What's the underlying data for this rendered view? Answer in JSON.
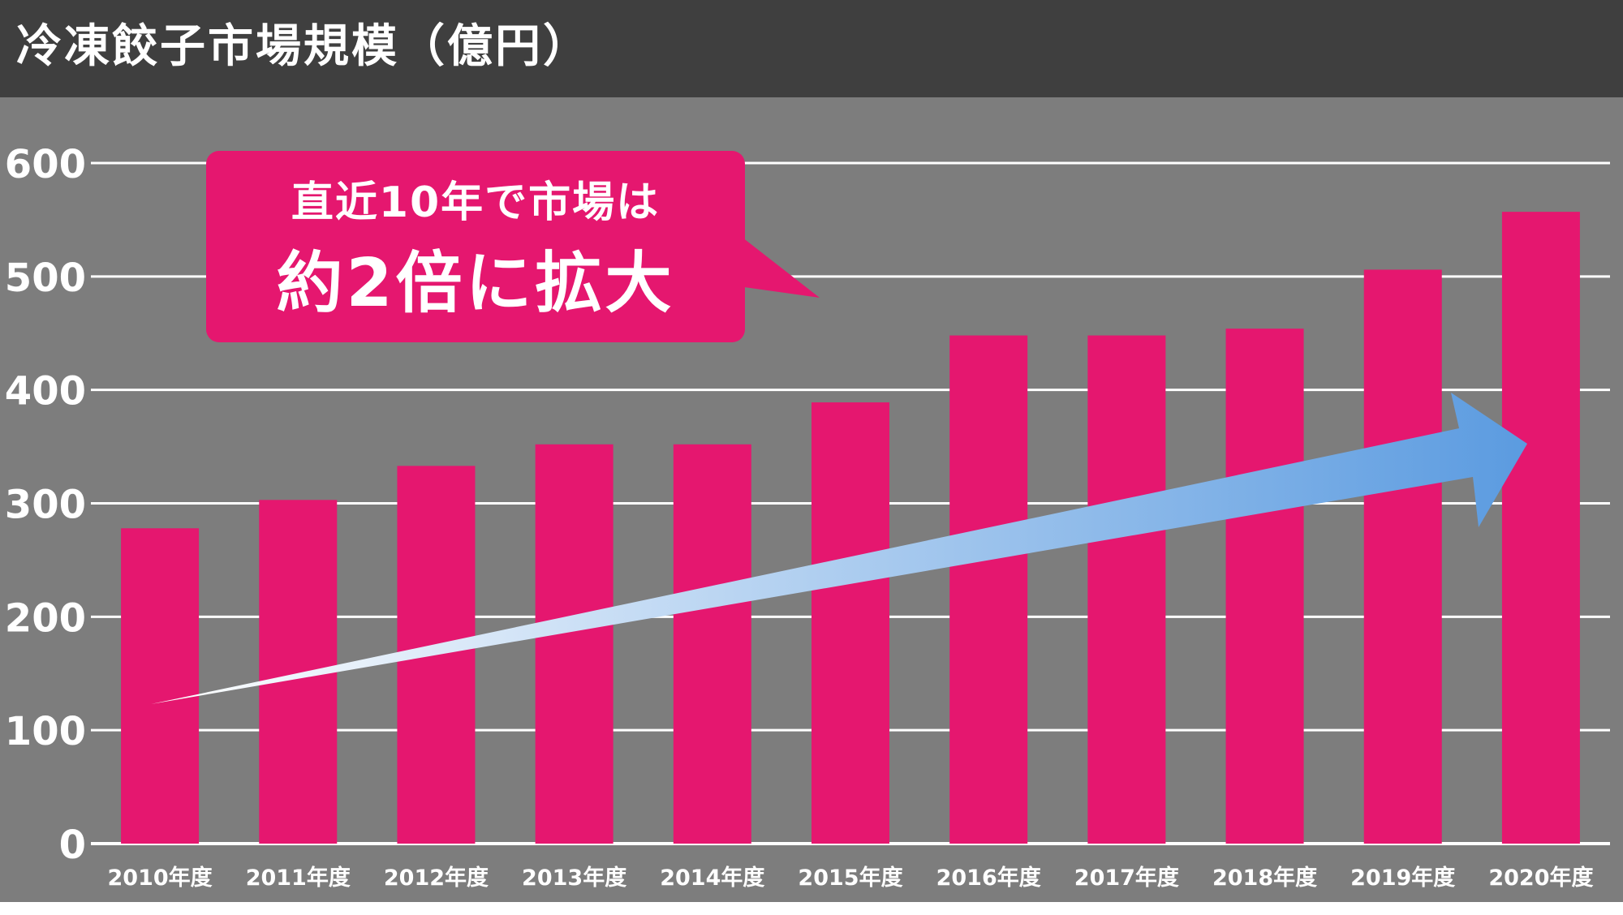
{
  "title": "冷凍餃子市場規模（億円）",
  "callout": {
    "line1": "直近10年で市場は",
    "line2": "約2倍に拡大"
  },
  "colors": {
    "bar": "#e5176f",
    "background": "#7d7d7d",
    "header": "#3f3f3f",
    "grid": "#ffffff",
    "arrow_start": "#ffffff",
    "arrow_end": "#5b9be0"
  },
  "chart_data": {
    "type": "bar",
    "title": "冷凍餃子市場規模（億円）",
    "categories": [
      "2010年度",
      "2011年度",
      "2012年度",
      "2013年度",
      "2014年度",
      "2015年度",
      "2016年度",
      "2017年度",
      "2018年度",
      "2019年度",
      "2020年度"
    ],
    "values": [
      278,
      303,
      333,
      352,
      352,
      389,
      448,
      448,
      454,
      506,
      557
    ],
    "y_ticks": [
      "0",
      "100",
      "200",
      "300",
      "400",
      "500",
      "600"
    ],
    "ylim": [
      0,
      600
    ],
    "grid": true,
    "trend_arrow": {
      "from_category": "2010年度",
      "to_category": "2020年度",
      "direction": "up"
    }
  }
}
